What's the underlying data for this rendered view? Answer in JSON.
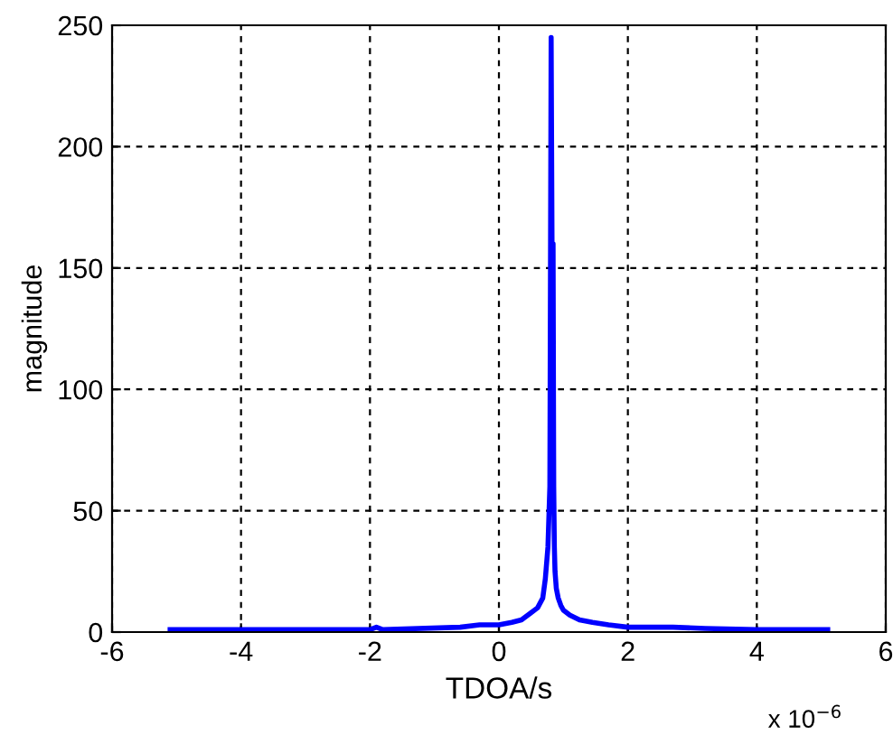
{
  "chart_data": {
    "type": "line",
    "xlabel": "TDOA/s",
    "ylabel": "magnitude",
    "annotations": [
      "x 10$^{−6}$"
    ],
    "series": [
      {
        "color": "#0000ff",
        "x": [
          -5.1,
          -3.0,
          -2.0,
          -1.9,
          -1.8,
          -0.6,
          -0.3,
          0.0,
          0.2,
          0.35,
          0.5,
          0.6,
          0.68,
          0.72,
          0.76,
          0.79,
          0.81,
          0.83,
          0.84,
          0.85,
          0.86,
          0.87,
          0.89,
          0.92,
          0.96,
          1.0,
          1.1,
          1.25,
          1.45,
          1.7,
          2.0,
          2.4,
          2.7,
          3.2,
          4.0,
          5.1
        ],
        "values": [
          1,
          1,
          1,
          2,
          1,
          2,
          3,
          3,
          4,
          5,
          8,
          10,
          14,
          22,
          35,
          60,
          245,
          120,
          160,
          60,
          35,
          25,
          18,
          14,
          11,
          9,
          7,
          5,
          4,
          3,
          2,
          2,
          2,
          1.5,
          1,
          1
        ]
      }
    ],
    "xlim": [
      -6,
      6
    ],
    "ylim": [
      0,
      250
    ],
    "xticks": [
      -6,
      -4,
      -2,
      0,
      2,
      4,
      6
    ],
    "yticks": [
      0,
      50,
      100,
      150,
      200,
      250
    ],
    "grid": true,
    "line_style": "solid",
    "marker": "none"
  }
}
